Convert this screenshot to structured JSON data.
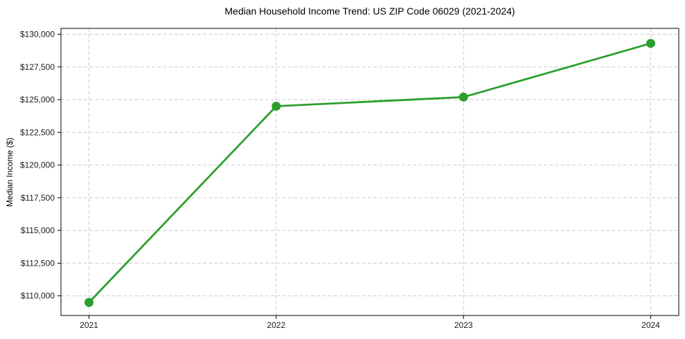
{
  "chart_data": {
    "type": "line",
    "title": "Median Household Income Trend: US ZIP Code 06029 (2021-2024)",
    "xlabel": "",
    "ylabel": "Median Income ($)",
    "x": [
      2021,
      2022,
      2023,
      2024
    ],
    "x_tick_labels": [
      "2021",
      "2022",
      "2023",
      "2024"
    ],
    "series": [
      {
        "name": "Median Household Income",
        "values": [
          109500,
          124500,
          125200,
          129300
        ]
      }
    ],
    "y_ticks": [
      110000,
      112500,
      115000,
      117500,
      120000,
      122500,
      125000,
      127500,
      130000
    ],
    "y_tick_labels": [
      "$110,000",
      "$112,500",
      "$115,000",
      "$117,500",
      "$120,000",
      "$122,500",
      "$125,000",
      "$127,500",
      "$130,000"
    ],
    "xlim": [
      2020.85,
      2024.15
    ],
    "ylim": [
      108500,
      130450
    ],
    "grid": true,
    "grid_style": "dashed",
    "legend_position": "none",
    "colors": {
      "line": "#2ca02c",
      "marker": "#2ca02c",
      "grid": "#cccccc",
      "spine": "#000000",
      "text": "#000000"
    }
  }
}
